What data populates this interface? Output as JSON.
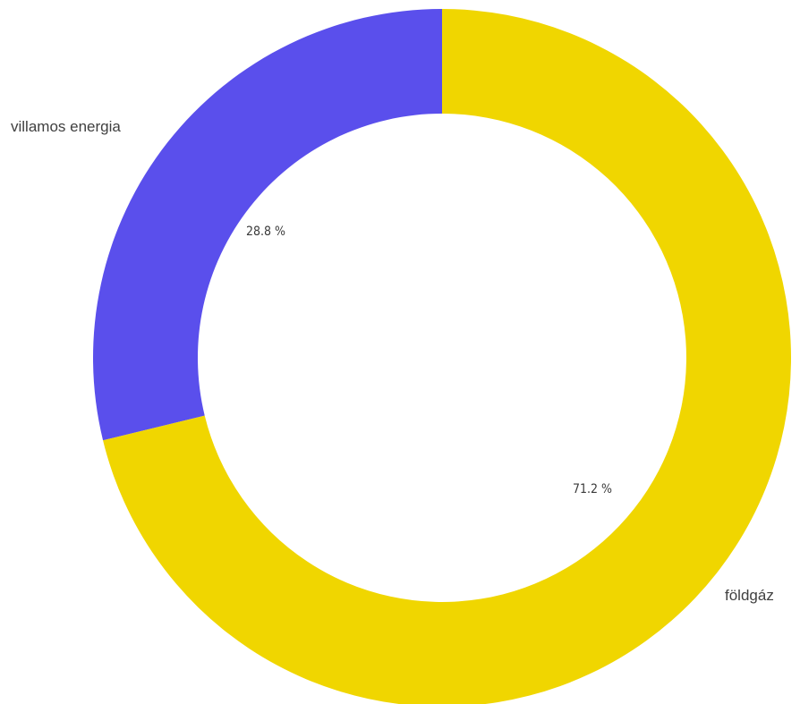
{
  "chart_data": {
    "type": "pie",
    "variant": "donut",
    "title": "",
    "slices": [
      {
        "label": "villamos energia",
        "value": 28.8,
        "display": "28.8 %",
        "color": "#5a4fec"
      },
      {
        "label": "földgáz",
        "value": 71.2,
        "display": "71.2 %",
        "color": "#f0d600"
      }
    ],
    "start_angle_deg": 0,
    "direction": "counterclockwise-from-top",
    "legend": "none"
  }
}
